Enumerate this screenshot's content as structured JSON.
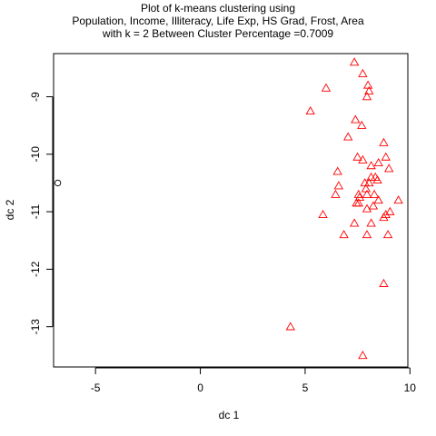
{
  "chart_data": {
    "type": "scatter",
    "title_lines": [
      "Plot of k-means clustering using",
      "Population, Income, Illiteracy, Life Exp, HS Grad, Frost, Area",
      "with  k = 2 Between Cluster Percentage =0.7009"
    ],
    "xlabel": "dc 1",
    "ylabel": "dc 2",
    "xlim": [
      -7.0,
      9.9
    ],
    "ylim": [
      -13.7,
      -8.25
    ],
    "x_ticks": [
      -5,
      0,
      5,
      10
    ],
    "x_tick_labels": [
      "-5",
      "0",
      "5",
      "10"
    ],
    "y_ticks": [
      -9,
      -10,
      -11,
      -12,
      -13
    ],
    "y_tick_labels": [
      "-9",
      "-10",
      "-11",
      "-12",
      "-13"
    ],
    "grid": false,
    "legend": "none",
    "series": [
      {
        "marker": "circle",
        "color": "#000000",
        "points": [
          [
            -6.8,
            -10.5
          ]
        ]
      },
      {
        "marker": "triangle",
        "color": "#ff0000",
        "points": [
          [
            7.35,
            -8.4
          ],
          [
            7.75,
            -8.6
          ],
          [
            8.0,
            -8.8
          ],
          [
            8.05,
            -8.9
          ],
          [
            6.0,
            -8.85
          ],
          [
            7.95,
            -9.0
          ],
          [
            5.25,
            -9.25
          ],
          [
            7.4,
            -9.4
          ],
          [
            7.7,
            -9.5
          ],
          [
            7.05,
            -9.7
          ],
          [
            8.75,
            -9.8
          ],
          [
            7.5,
            -10.05
          ],
          [
            8.85,
            -10.05
          ],
          [
            7.75,
            -10.1
          ],
          [
            8.5,
            -10.15
          ],
          [
            8.15,
            -10.2
          ],
          [
            9.0,
            -10.25
          ],
          [
            6.55,
            -10.3
          ],
          [
            8.35,
            -10.4
          ],
          [
            8.15,
            -10.4
          ],
          [
            8.45,
            -10.45
          ],
          [
            8.05,
            -10.5
          ],
          [
            7.85,
            -10.5
          ],
          [
            6.6,
            -10.55
          ],
          [
            7.9,
            -10.6
          ],
          [
            7.55,
            -10.7
          ],
          [
            8.3,
            -10.7
          ],
          [
            7.95,
            -10.7
          ],
          [
            6.45,
            -10.7
          ],
          [
            7.6,
            -10.75
          ],
          [
            9.45,
            -10.8
          ],
          [
            8.5,
            -10.8
          ],
          [
            7.55,
            -10.85
          ],
          [
            7.45,
            -10.85
          ],
          [
            8.25,
            -10.9
          ],
          [
            7.95,
            -10.95
          ],
          [
            9.05,
            -11.0
          ],
          [
            8.85,
            -11.05
          ],
          [
            8.75,
            -11.1
          ],
          [
            5.85,
            -11.05
          ],
          [
            7.35,
            -11.2
          ],
          [
            8.15,
            -11.2
          ],
          [
            6.85,
            -11.4
          ],
          [
            7.95,
            -11.4
          ],
          [
            8.95,
            -11.4
          ],
          [
            8.75,
            -12.25
          ],
          [
            4.3,
            -13.0
          ],
          [
            7.75,
            -13.5
          ]
        ]
      }
    ]
  }
}
